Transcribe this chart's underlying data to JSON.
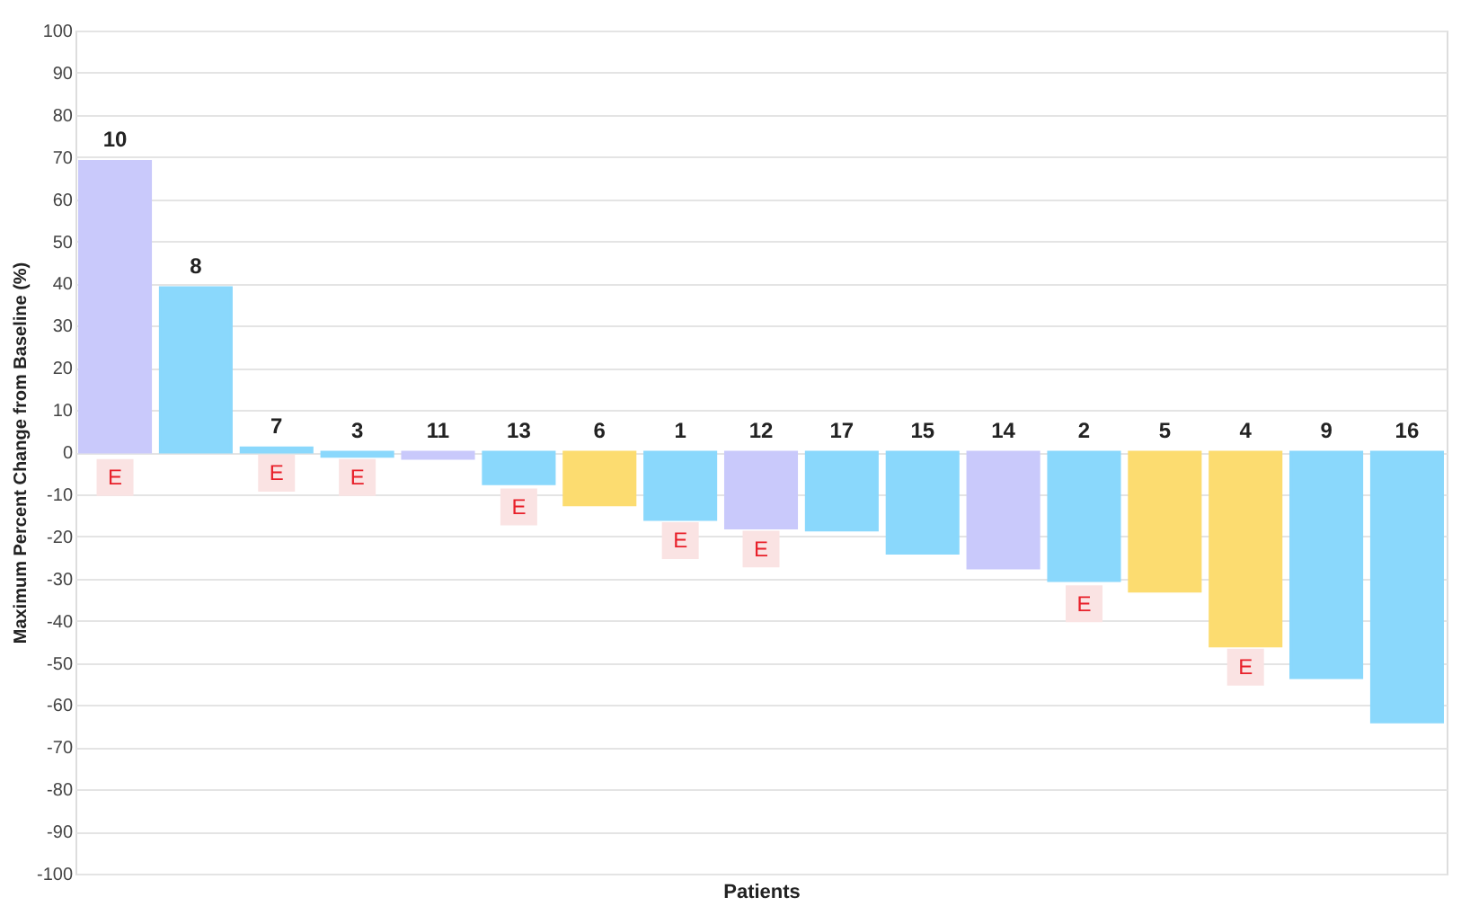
{
  "chart_data": {
    "type": "bar",
    "ylabel": "Maximum Percent Change from Baseline (%)",
    "xlabel": "Patients",
    "categories": [
      "10",
      "8",
      "7",
      "3",
      "11",
      "13",
      "6",
      "1",
      "12",
      "17",
      "15",
      "14",
      "2",
      "5",
      "4",
      "9",
      "16"
    ],
    "values": [
      69,
      39,
      1,
      -1,
      -1.5,
      -7.5,
      -12.5,
      -16,
      -18,
      -18.5,
      -24,
      -27.5,
      -30.5,
      -33,
      -46,
      -53.5,
      -64
    ],
    "colors": [
      "#c9c9fb",
      "#8ad8fc",
      "#8ad8fc",
      "#8ad8fc",
      "#c9c9fb",
      "#8ad8fc",
      "#fcdc70",
      "#8ad8fc",
      "#c9c9fb",
      "#8ad8fc",
      "#8ad8fc",
      "#c9c9fb",
      "#8ad8fc",
      "#fcdc70",
      "#fcdc70",
      "#8ad8fc",
      "#8ad8fc"
    ],
    "ylim": [
      -100,
      100
    ],
    "yticks": [
      -100,
      -90,
      -80,
      -70,
      -60,
      -50,
      -40,
      -30,
      -20,
      -10,
      0,
      10,
      20,
      30,
      40,
      50,
      60,
      70,
      80,
      90,
      100
    ],
    "grid": "y",
    "tick_labels": "y",
    "annotations": [
      {
        "text": "E",
        "x": "10",
        "y": -6
      },
      {
        "text": "E",
        "x": "7",
        "y": -5
      },
      {
        "text": "E",
        "x": "3",
        "y": -6
      },
      {
        "text": "E",
        "x": "13",
        "y": -13
      },
      {
        "text": "E",
        "x": "1",
        "y": -21
      },
      {
        "text": "E",
        "x": "12",
        "y": -23
      },
      {
        "text": "E",
        "x": "2",
        "y": -36
      },
      {
        "text": "E",
        "x": "4",
        "y": -51
      }
    ]
  }
}
